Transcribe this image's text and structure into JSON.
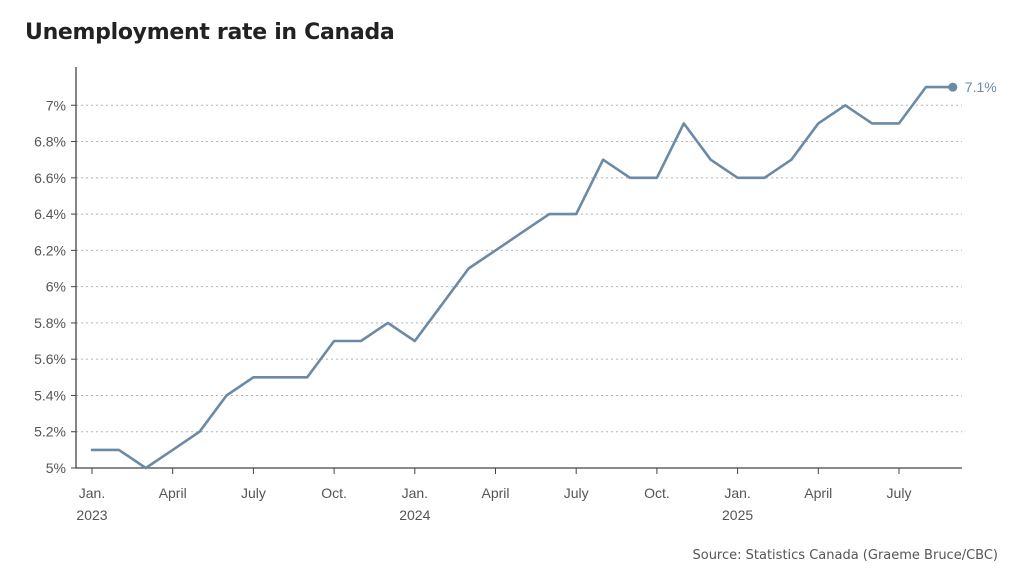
{
  "chart_data": {
    "type": "line",
    "title": "Unemployment rate in Canada",
    "source": "Source: Statistics Canada (Graeme Bruce/CBC)",
    "xlabel": "",
    "ylabel": "",
    "ylim": [
      5,
      7.2
    ],
    "grid": true,
    "y_ticks": [
      {
        "value": 5.0,
        "label": "5%"
      },
      {
        "value": 5.2,
        "label": "5.2%"
      },
      {
        "value": 5.4,
        "label": "5.4%"
      },
      {
        "value": 5.6,
        "label": "5.6%"
      },
      {
        "value": 5.8,
        "label": "5.8%"
      },
      {
        "value": 6.0,
        "label": "6%"
      },
      {
        "value": 6.2,
        "label": "6.2%"
      },
      {
        "value": 6.4,
        "label": "6.4%"
      },
      {
        "value": 6.6,
        "label": "6.6%"
      },
      {
        "value": 6.8,
        "label": "6.8%"
      },
      {
        "value": 7.0,
        "label": "7%"
      }
    ],
    "x_ticks": [
      {
        "index": 0,
        "label": "Jan.",
        "year": "2023"
      },
      {
        "index": 3,
        "label": "April",
        "year": ""
      },
      {
        "index": 6,
        "label": "July",
        "year": ""
      },
      {
        "index": 9,
        "label": "Oct.",
        "year": ""
      },
      {
        "index": 12,
        "label": "Jan.",
        "year": "2024"
      },
      {
        "index": 15,
        "label": "April",
        "year": ""
      },
      {
        "index": 18,
        "label": "July",
        "year": ""
      },
      {
        "index": 21,
        "label": "Oct.",
        "year": ""
      },
      {
        "index": 24,
        "label": "Jan.",
        "year": "2025"
      },
      {
        "index": 27,
        "label": "April",
        "year": ""
      },
      {
        "index": 30,
        "label": "July",
        "year": ""
      }
    ],
    "series": [
      {
        "name": "Unemployment rate",
        "color": "#6b8aa6",
        "x": [
          "Jan 2023",
          "Feb 2023",
          "Mar 2023",
          "Apr 2023",
          "May 2023",
          "Jun 2023",
          "Jul 2023",
          "Aug 2023",
          "Sep 2023",
          "Oct 2023",
          "Nov 2023",
          "Dec 2023",
          "Jan 2024",
          "Feb 2024",
          "Mar 2024",
          "Apr 2024",
          "May 2024",
          "Jun 2024",
          "Jul 2024",
          "Aug 2024",
          "Sep 2024",
          "Oct 2024",
          "Nov 2024",
          "Dec 2024",
          "Jan 2025",
          "Feb 2025",
          "Mar 2025",
          "Apr 2025",
          "May 2025",
          "Jun 2025",
          "Jul 2025",
          "Aug 2025",
          "Sep 2025"
        ],
        "values": [
          5.1,
          5.1,
          5.0,
          5.1,
          5.2,
          5.4,
          5.5,
          5.5,
          5.5,
          5.7,
          5.7,
          5.8,
          5.7,
          5.9,
          6.1,
          6.2,
          6.3,
          6.4,
          6.4,
          6.7,
          6.6,
          6.6,
          6.9,
          6.7,
          6.6,
          6.6,
          6.7,
          6.9,
          7.0,
          6.9,
          6.9,
          7.1,
          7.1
        ]
      }
    ],
    "end_label": "7.1%"
  }
}
